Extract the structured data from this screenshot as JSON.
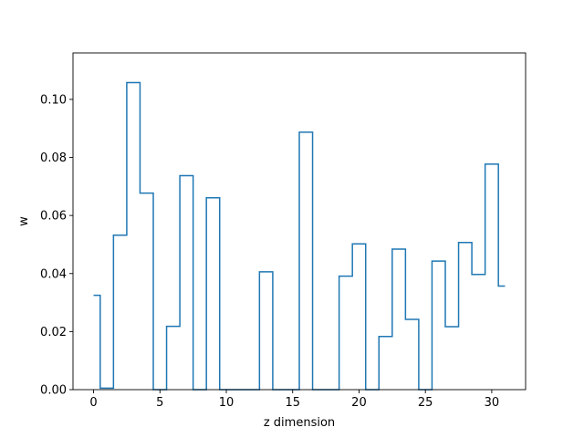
{
  "chart_data": {
    "type": "line",
    "style": "step-mid",
    "title": "",
    "xlabel": "z dimension",
    "ylabel": "w",
    "xlim": [
      -1.55,
      32.55
    ],
    "ylim": [
      0.0,
      0.116
    ],
    "xticks": [
      0,
      5,
      10,
      15,
      20,
      25,
      30
    ],
    "xtick_labels": [
      "0",
      "5",
      "10",
      "15",
      "20",
      "25",
      "30"
    ],
    "yticks": [
      0.0,
      0.02,
      0.04,
      0.06,
      0.08,
      0.1
    ],
    "ytick_labels": [
      "0.00",
      "0.02",
      "0.04",
      "0.06",
      "0.08",
      "0.10"
    ],
    "grid": false,
    "series": [
      {
        "color": "#1f77b4",
        "x": [
          0,
          1,
          2,
          3,
          4,
          5,
          6,
          7,
          8,
          9,
          10,
          11,
          12,
          13,
          14,
          15,
          16,
          17,
          18,
          19,
          20,
          21,
          22,
          23,
          24,
          25,
          26,
          27,
          28,
          29,
          30,
          31
        ],
        "values": [
          0.0325,
          0.0005,
          0.0532,
          0.1058,
          0.0677,
          0.0,
          0.0218,
          0.0737,
          0.0,
          0.0661,
          0.0,
          0.0,
          0.0,
          0.0406,
          0.0,
          0.0,
          0.0887,
          0.0,
          0.0,
          0.0391,
          0.0502,
          0.0,
          0.0183,
          0.0484,
          0.0242,
          0.0,
          0.0443,
          0.0217,
          0.0507,
          0.0397,
          0.0777,
          0.0357
        ]
      }
    ]
  }
}
